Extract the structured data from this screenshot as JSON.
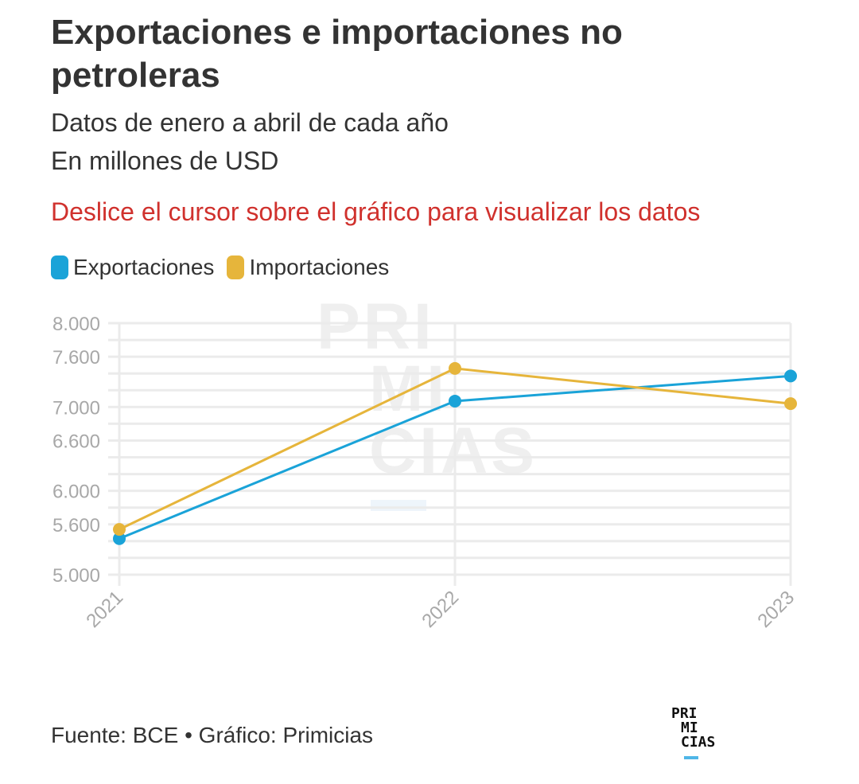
{
  "header": {
    "title": "Exportaciones e importaciones no petroleras",
    "subtitle_line1": "Datos de enero a abril de cada año",
    "subtitle_line2": "En millones de USD",
    "instruction": "Deslice el cursor sobre el gráfico para visualizar los datos"
  },
  "legend": [
    {
      "label": "Exportaciones",
      "color": "#1aa3d8"
    },
    {
      "label": "Importaciones",
      "color": "#e6b53b"
    }
  ],
  "watermark": {
    "line1": "PRI",
    "line2": "MI",
    "line3": "CIAS"
  },
  "footer": {
    "source": "Fuente: BCE • Gráfico: Primicias",
    "logo_line1": "PRI",
    "logo_line2": "MI",
    "logo_line3": "CIAS"
  },
  "chart_data": {
    "type": "line",
    "title": "Exportaciones e importaciones no petroleras",
    "subtitle": "Datos de enero a abril de cada año; En millones de USD",
    "xlabel": "",
    "ylabel": "",
    "x": [
      "2021",
      "2022",
      "2023"
    ],
    "ylim": [
      5000,
      8000
    ],
    "y_ticks": [
      5000,
      5600,
      6000,
      6600,
      7000,
      7600,
      8000
    ],
    "y_tick_labels": [
      "5.000",
      "5.600",
      "6.000",
      "6.600",
      "7.000",
      "7.600",
      "8.000"
    ],
    "grid_step": 200,
    "grid": true,
    "legend_position": "top-left",
    "series": [
      {
        "name": "Exportaciones",
        "color": "#1aa3d8",
        "values": [
          5430,
          7070,
          7370
        ]
      },
      {
        "name": "Importaciones",
        "color": "#e6b53b",
        "values": [
          5540,
          7460,
          7040
        ]
      }
    ]
  }
}
